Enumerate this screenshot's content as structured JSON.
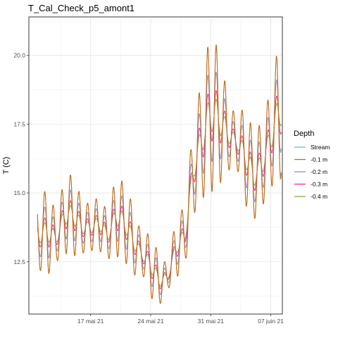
{
  "chart_data": {
    "type": "line",
    "title": "T_Cal_Check_p5_amont1",
    "xlabel": "",
    "ylabel": "T (C)",
    "x_range": [
      "2021-05-10",
      "2021-06-08"
    ],
    "ylim": [
      10.6,
      21.4
    ],
    "x_ticks": [
      {
        "date": "2021-05-17",
        "label": "17 mai 21"
      },
      {
        "date": "2021-05-24",
        "label": "24 mai 21"
      },
      {
        "date": "2021-05-31",
        "label": "31 mai 21"
      },
      {
        "date": "2021-06-07",
        "label": "07 juin 21"
      }
    ],
    "y_ticks": [
      12.5,
      15.0,
      17.5,
      20.0
    ],
    "grid": true,
    "legend": {
      "title": "Depth",
      "position": "right"
    },
    "series": [
      {
        "name": "Stream",
        "color": "#66C2A5",
        "amplitude": 1.0
      },
      {
        "name": "-0.1 m",
        "color": "#C96A1A",
        "amplitude": 1.0
      },
      {
        "name": "-0.2 m",
        "color": "#8D8FC8",
        "amplitude": 0.62
      },
      {
        "name": "-0.3 m",
        "color": "#E7298A",
        "amplitude": 0.36
      },
      {
        "name": "-0.4 m",
        "color": "#7FAE3C",
        "amplitude": 0.24
      }
    ],
    "daily": [
      {
        "date": "2021-05-11",
        "min": 12.2,
        "max": 14.8
      },
      {
        "date": "2021-05-12",
        "min": 12.0,
        "max": 15.2
      },
      {
        "date": "2021-05-13",
        "min": 12.5,
        "max": 14.2
      },
      {
        "date": "2021-05-14",
        "min": 12.8,
        "max": 15.6
      },
      {
        "date": "2021-05-15",
        "min": 12.7,
        "max": 15.7
      },
      {
        "date": "2021-05-16",
        "min": 12.8,
        "max": 14.7
      },
      {
        "date": "2021-05-17",
        "min": 12.9,
        "max": 14.6
      },
      {
        "date": "2021-05-18",
        "min": 12.9,
        "max": 14.9
      },
      {
        "date": "2021-05-19",
        "min": 12.6,
        "max": 14.3
      },
      {
        "date": "2021-05-20",
        "min": 12.7,
        "max": 15.7
      },
      {
        "date": "2021-05-21",
        "min": 12.5,
        "max": 15.3
      },
      {
        "date": "2021-05-22",
        "min": 12.0,
        "max": 14.5
      },
      {
        "date": "2021-05-23",
        "min": 12.1,
        "max": 13.4
      },
      {
        "date": "2021-05-24",
        "min": 11.2,
        "max": 13.6
      },
      {
        "date": "2021-05-25",
        "min": 10.9,
        "max": 12.7
      },
      {
        "date": "2021-05-26",
        "min": 11.5,
        "max": 12.4
      },
      {
        "date": "2021-05-27",
        "min": 11.9,
        "max": 14.2
      },
      {
        "date": "2021-05-28",
        "min": 12.4,
        "max": 14.5
      },
      {
        "date": "2021-05-29",
        "min": 14.2,
        "max": 17.6
      },
      {
        "date": "2021-05-30",
        "min": 14.8,
        "max": 19.2
      },
      {
        "date": "2021-05-31",
        "min": 15.0,
        "max": 20.9
      },
      {
        "date": "2021-06-01",
        "min": 15.3,
        "max": 20.1
      },
      {
        "date": "2021-06-02",
        "min": 15.8,
        "max": 18.5
      },
      {
        "date": "2021-06-03",
        "min": 16.0,
        "max": 17.7
      },
      {
        "date": "2021-06-04",
        "min": 14.6,
        "max": 18.2
      },
      {
        "date": "2021-06-05",
        "min": 14.0,
        "max": 17.2
      },
      {
        "date": "2021-06-06",
        "min": 14.5,
        "max": 17.6
      },
      {
        "date": "2021-06-07",
        "min": 15.2,
        "max": 18.8
      },
      {
        "date": "2021-06-08",
        "min": 15.5,
        "max": 20.6
      }
    ]
  }
}
